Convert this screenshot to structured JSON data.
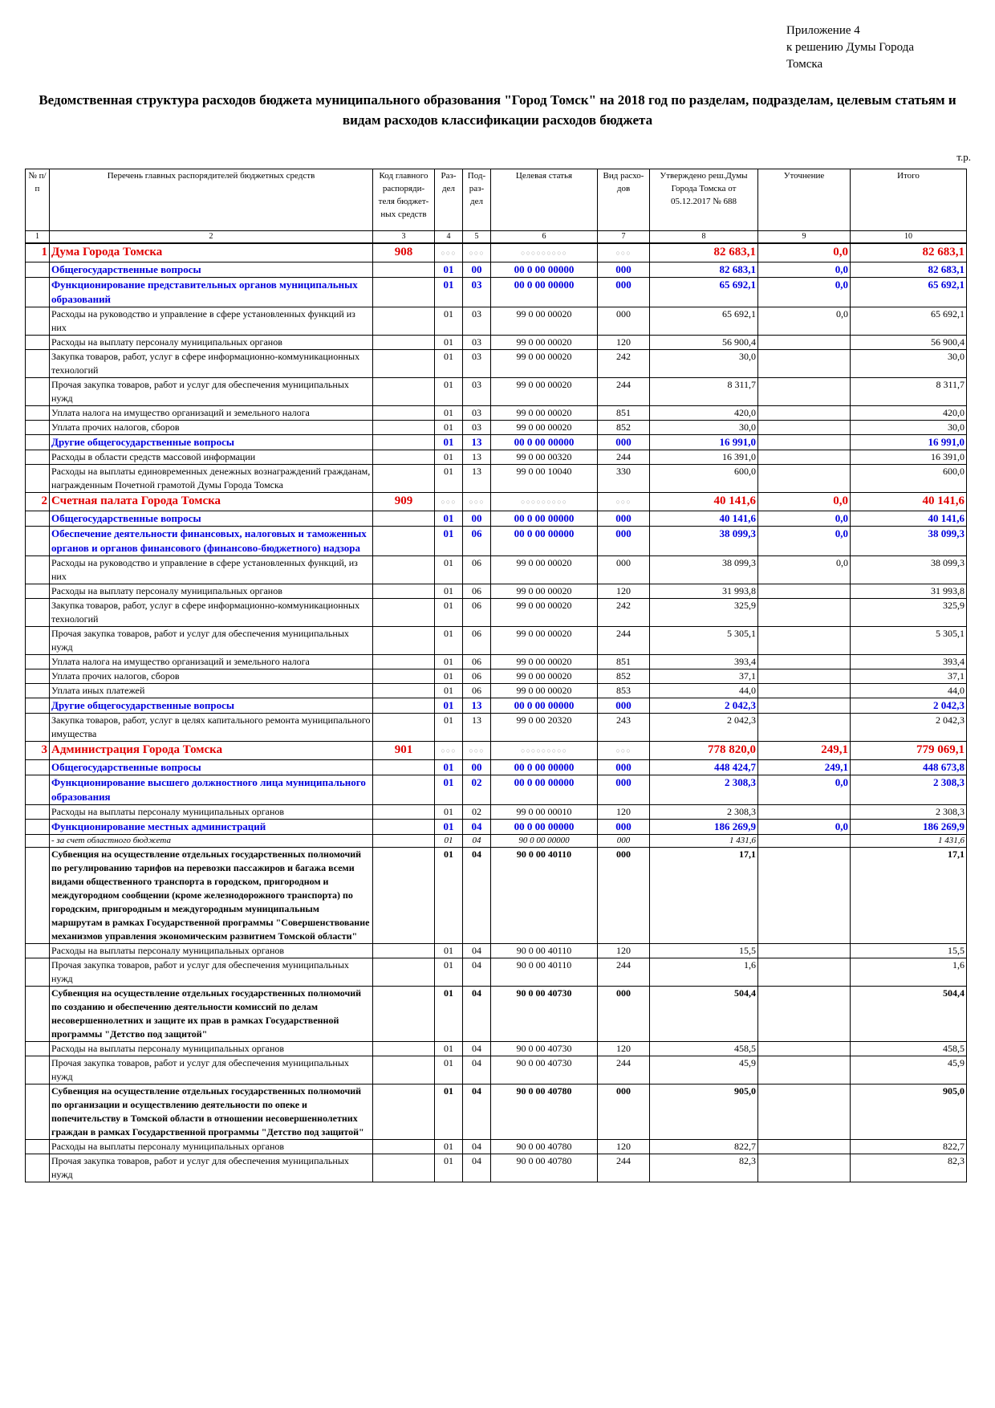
{
  "header": {
    "appendix_lines": [
      "Приложение 4",
      "к решению Думы Города",
      "Томска"
    ],
    "title": "Ведомственная структура расходов бюджета муниципального образования \"Город Томск\" на 2018 год по разделам, подразделам, целевым статьям и видам расходов классификации расходов бюджета",
    "units": "т.р."
  },
  "table": {
    "columns": [
      "№ п/п",
      "Перечень главных распорядителей бюджетных средств",
      "Код главного распоряди-теля бюджет-ных средств",
      "Раз-дел",
      "Под-раз-дел",
      "Целевая статья",
      "Вид расхо-дов",
      "Утверждено реш.Думы Города Томска от 05.12.2017 № 688",
      "Уточнение",
      "Итого"
    ],
    "column_numbers": [
      "1",
      "2",
      "3",
      "4",
      "5",
      "6",
      "7",
      "8",
      "9",
      "10"
    ],
    "rows": [
      {
        "kind": "dept",
        "num": "1",
        "name": "Дума Города Томска",
        "code": "908",
        "razdel": "",
        "podrazdel": "",
        "statya": "",
        "vid": "",
        "approved": "82 683,1",
        "change": "0,0",
        "total": "82 683,1"
      },
      {
        "kind": "sec",
        "num": "",
        "name": "Общегосударственные вопросы",
        "code": "",
        "razdel": "01",
        "podrazdel": "00",
        "statya": "00 0 00 00000",
        "vid": "000",
        "approved": "82 683,1",
        "change": "0,0",
        "total": "82 683,1"
      },
      {
        "kind": "sec",
        "num": "",
        "name": "Функционирование представительных органов муниципальных образований",
        "code": "",
        "razdel": "01",
        "podrazdel": "03",
        "statya": "00 0 00 00000",
        "vid": "000",
        "approved": "65 692,1",
        "change": "0,0",
        "total": "65 692,1"
      },
      {
        "kind": "norm",
        "num": "",
        "name": "Расходы на руководство и управление в сфере установленных функций из них",
        "code": "",
        "razdel": "01",
        "podrazdel": "03",
        "statya": "99 0 00 00020",
        "vid": "000",
        "approved": "65 692,1",
        "change": "0,0",
        "total": "65 692,1"
      },
      {
        "kind": "norm",
        "num": "",
        "name": "Расходы на выплату персоналу муниципальных органов",
        "code": "",
        "razdel": "01",
        "podrazdel": "03",
        "statya": "99 0 00 00020",
        "vid": "120",
        "approved": "56 900,4",
        "change": "",
        "total": "56 900,4"
      },
      {
        "kind": "norm",
        "num": "",
        "name": "Закупка товаров, работ, услуг в сфере информационно-коммуникационных технологий",
        "code": "",
        "razdel": "01",
        "podrazdel": "03",
        "statya": "99 0 00 00020",
        "vid": "242",
        "approved": "30,0",
        "change": "",
        "total": "30,0"
      },
      {
        "kind": "norm",
        "num": "",
        "name": "Прочая закупка товаров, работ и услуг для обеспечения муниципальных нужд",
        "code": "",
        "razdel": "01",
        "podrazdel": "03",
        "statya": "99 0 00 00020",
        "vid": "244",
        "approved": "8 311,7",
        "change": "",
        "total": "8 311,7"
      },
      {
        "kind": "norm",
        "num": "",
        "name": "Уплата налога на имущество организаций и земельного налога",
        "code": "",
        "razdel": "01",
        "podrazdel": "03",
        "statya": "99 0 00 00020",
        "vid": "851",
        "approved": "420,0",
        "change": "",
        "total": "420,0"
      },
      {
        "kind": "norm",
        "num": "",
        "name": "Уплата прочих налогов, сборов",
        "code": "",
        "razdel": "01",
        "podrazdel": "03",
        "statya": "99 0 00 00020",
        "vid": "852",
        "approved": "30,0",
        "change": "",
        "total": "30,0"
      },
      {
        "kind": "sec",
        "num": "",
        "name": "Другие общегосударственные вопросы",
        "code": "",
        "razdel": "01",
        "podrazdel": "13",
        "statya": "00 0 00 00000",
        "vid": "000",
        "approved": "16 991,0",
        "change": "",
        "total": "16 991,0"
      },
      {
        "kind": "norm",
        "num": "",
        "name": "Расходы в области средств массовой информации",
        "code": "",
        "razdel": "01",
        "podrazdel": "13",
        "statya": "99 0 00 00320",
        "vid": "244",
        "approved": "16 391,0",
        "change": "",
        "total": "16 391,0"
      },
      {
        "kind": "norm",
        "num": "",
        "name": "Расходы на выплаты единовременных денежных вознаграждений гражданам, награжденным Почетной грамотой Думы Города Томска",
        "code": "",
        "razdel": "01",
        "podrazdel": "13",
        "statya": "99 0 00 10040",
        "vid": "330",
        "approved": "600,0",
        "change": "",
        "total": "600,0"
      },
      {
        "kind": "dept",
        "num": "2",
        "name": "Счетная палата Города Томска",
        "code": "909",
        "razdel": "",
        "podrazdel": "",
        "statya": "",
        "vid": "",
        "approved": "40 141,6",
        "change": "0,0",
        "total": "40 141,6"
      },
      {
        "kind": "sec",
        "num": "",
        "name": "Общегосударственные вопросы",
        "code": "",
        "razdel": "01",
        "podrazdel": "00",
        "statya": "00 0 00 00000",
        "vid": "000",
        "approved": "40 141,6",
        "change": "0,0",
        "total": "40 141,6"
      },
      {
        "kind": "sec",
        "num": "",
        "name": "Обеспечение деятельности финансовых, налоговых и таможенных органов и органов финансового (финансово-бюджетного) надзора",
        "code": "",
        "razdel": "01",
        "podrazdel": "06",
        "statya": "00 0 00 00000",
        "vid": "000",
        "approved": "38 099,3",
        "change": "0,0",
        "total": "38 099,3"
      },
      {
        "kind": "norm",
        "num": "",
        "name": "Расходы на руководство и управление в сфере установленных функций, из них",
        "code": "",
        "razdel": "01",
        "podrazdel": "06",
        "statya": "99 0 00 00020",
        "vid": "000",
        "approved": "38 099,3",
        "change": "0,0",
        "total": "38 099,3"
      },
      {
        "kind": "norm",
        "num": "",
        "name": "Расходы на выплату персоналу муниципальных органов",
        "code": "",
        "razdel": "01",
        "podrazdel": "06",
        "statya": "99 0 00 00020",
        "vid": "120",
        "approved": "31 993,8",
        "change": "",
        "total": "31 993,8"
      },
      {
        "kind": "norm",
        "num": "",
        "name": "Закупка товаров, работ, услуг в сфере информационно-коммуникационных технологий",
        "code": "",
        "razdel": "01",
        "podrazdel": "06",
        "statya": "99 0 00 00020",
        "vid": "242",
        "approved": "325,9",
        "change": "",
        "total": "325,9"
      },
      {
        "kind": "norm",
        "num": "",
        "name": "Прочая закупка товаров, работ и услуг для обеспечения муниципальных нужд",
        "code": "",
        "razdel": "01",
        "podrazdel": "06",
        "statya": "99 0 00 00020",
        "vid": "244",
        "approved": "5 305,1",
        "change": "",
        "total": "5 305,1"
      },
      {
        "kind": "norm",
        "num": "",
        "name": "Уплата налога на имущество организаций и земельного налога",
        "code": "",
        "razdel": "01",
        "podrazdel": "06",
        "statya": "99 0 00 00020",
        "vid": "851",
        "approved": "393,4",
        "change": "",
        "total": "393,4"
      },
      {
        "kind": "norm",
        "num": "",
        "name": "Уплата прочих налогов, сборов",
        "code": "",
        "razdel": "01",
        "podrazdel": "06",
        "statya": "99 0 00 00020",
        "vid": "852",
        "approved": "37,1",
        "change": "",
        "total": "37,1"
      },
      {
        "kind": "norm",
        "num": "",
        "name": "Уплата иных платежей",
        "code": "",
        "razdel": "01",
        "podrazdel": "06",
        "statya": "99 0 00 00020",
        "vid": "853",
        "approved": "44,0",
        "change": "",
        "total": "44,0"
      },
      {
        "kind": "sec",
        "num": "",
        "name": "Другие общегосударственные вопросы",
        "code": "",
        "razdel": "01",
        "podrazdel": "13",
        "statya": "00 0 00 00000",
        "vid": "000",
        "approved": "2 042,3",
        "change": "",
        "total": "2 042,3"
      },
      {
        "kind": "norm",
        "num": "",
        "name": "Закупка товаров, работ, услуг в целях капитального ремонта муниципального имущества",
        "code": "",
        "razdel": "01",
        "podrazdel": "13",
        "statya": "99 0 00 20320",
        "vid": "243",
        "approved": "2 042,3",
        "change": "",
        "total": "2 042,3"
      },
      {
        "kind": "dept",
        "num": "3",
        "name": "Администрация Города Томска",
        "code": "901",
        "razdel": "",
        "podrazdel": "",
        "statya": "",
        "vid": "",
        "approved": "778 820,0",
        "change": "249,1",
        "total": "779 069,1"
      },
      {
        "kind": "sec",
        "num": "",
        "name": "Общегосударственные вопросы",
        "code": "",
        "razdel": "01",
        "podrazdel": "00",
        "statya": "00 0 00 00000",
        "vid": "000",
        "approved": "448 424,7",
        "change": "249,1",
        "total": "448 673,8"
      },
      {
        "kind": "sec",
        "num": "",
        "name": "Функционирование высшего должностного лица муниципального образования",
        "code": "",
        "razdel": "01",
        "podrazdel": "02",
        "statya": "00 0 00 00000",
        "vid": "000",
        "approved": "2 308,3",
        "change": "0,0",
        "total": "2 308,3"
      },
      {
        "kind": "norm",
        "num": "",
        "name": "Расходы на выплаты персоналу муниципальных органов",
        "code": "",
        "razdel": "01",
        "podrazdel": "02",
        "statya": "99 0 00 00010",
        "vid": "120",
        "approved": "2 308,3",
        "change": "",
        "total": "2 308,3"
      },
      {
        "kind": "sec",
        "num": "",
        "name": "Функционирование местных администраций",
        "code": "",
        "razdel": "01",
        "podrazdel": "04",
        "statya": "00 0 00 00000",
        "vid": "000",
        "approved": "186 269,9",
        "change": "0,0",
        "total": "186 269,9"
      },
      {
        "kind": "it",
        "num": "",
        "name": "- за счет областного бюджета",
        "code": "",
        "razdel": "01",
        "podrazdel": "04",
        "statya": "90 0 00 00000",
        "vid": "000",
        "approved": "1 431,6",
        "change": "",
        "total": "1 431,6"
      },
      {
        "kind": "bold",
        "num": "",
        "name": "Субвенция на осуществление отдельных государственных полномочий по регулированию тарифов на перевозки пассажиров и багажа всеми видами общественного транспорта в городском, пригородном и междугородном сообщении (кроме железнодорожного транспорта) по городским, пригородным и междугородным муниципальным маршрутам в рамках Государственной программы \"Совершенствование механизмов управления экономическим развитием Томской области\"",
        "code": "",
        "razdel": "01",
        "podrazdel": "04",
        "statya": "90 0 00 40110",
        "vid": "000",
        "approved": "17,1",
        "change": "",
        "total": "17,1"
      },
      {
        "kind": "norm",
        "num": "",
        "name": "Расходы на выплаты персоналу муниципальных органов",
        "code": "",
        "razdel": "01",
        "podrazdel": "04",
        "statya": "90 0 00 40110",
        "vid": "120",
        "approved": "15,5",
        "change": "",
        "total": "15,5"
      },
      {
        "kind": "norm",
        "num": "",
        "name": "Прочая закупка товаров, работ и услуг для обеспечения муниципальных нужд",
        "code": "",
        "razdel": "01",
        "podrazdel": "04",
        "statya": "90 0 00 40110",
        "vid": "244",
        "approved": "1,6",
        "change": "",
        "total": "1,6"
      },
      {
        "kind": "bold",
        "num": "",
        "name": "Субвенция на осуществление отдельных государственных полномочий по созданию и обеспечению деятельности комиссий по делам несовершеннолетних и защите их прав в рамках Государственной программы \"Детство под защитой\"",
        "code": "",
        "razdel": "01",
        "podrazdel": "04",
        "statya": "90 0 00 40730",
        "vid": "000",
        "approved": "504,4",
        "change": "",
        "total": "504,4"
      },
      {
        "kind": "norm",
        "num": "",
        "name": "Расходы на выплаты персоналу муниципальных органов",
        "code": "",
        "razdel": "01",
        "podrazdel": "04",
        "statya": "90 0 00 40730",
        "vid": "120",
        "approved": "458,5",
        "change": "",
        "total": "458,5"
      },
      {
        "kind": "norm",
        "num": "",
        "name": "Прочая закупка товаров, работ и услуг для обеспечения муниципальных нужд",
        "code": "",
        "razdel": "01",
        "podrazdel": "04",
        "statya": "90 0 00 40730",
        "vid": "244",
        "approved": "45,9",
        "change": "",
        "total": "45,9"
      },
      {
        "kind": "bold",
        "num": "",
        "name": "Субвенция на осуществление отдельных государственных полномочий по организации и осуществлению деятельности по опеке и попечительству в Томской области в отношении несовершеннолетних граждан в рамках Государственной программы \"Детство под защитой\"",
        "code": "",
        "razdel": "01",
        "podrazdel": "04",
        "statya": "90 0 00 40780",
        "vid": "000",
        "approved": "905,0",
        "change": "",
        "total": "905,0"
      },
      {
        "kind": "norm",
        "num": "",
        "name": "Расходы на выплаты персоналу муниципальных органов",
        "code": "",
        "razdel": "01",
        "podrazdel": "04",
        "statya": "90 0 00 40780",
        "vid": "120",
        "approved": "822,7",
        "change": "",
        "total": "822,7"
      },
      {
        "kind": "norm",
        "num": "",
        "name": "Прочая закупка товаров, работ и услуг для обеспечения муниципальных нужд",
        "code": "",
        "razdel": "01",
        "podrazdel": "04",
        "statya": "90 0 00 40780",
        "vid": "244",
        "approved": "82,3",
        "change": "",
        "total": "82,3"
      }
    ]
  }
}
